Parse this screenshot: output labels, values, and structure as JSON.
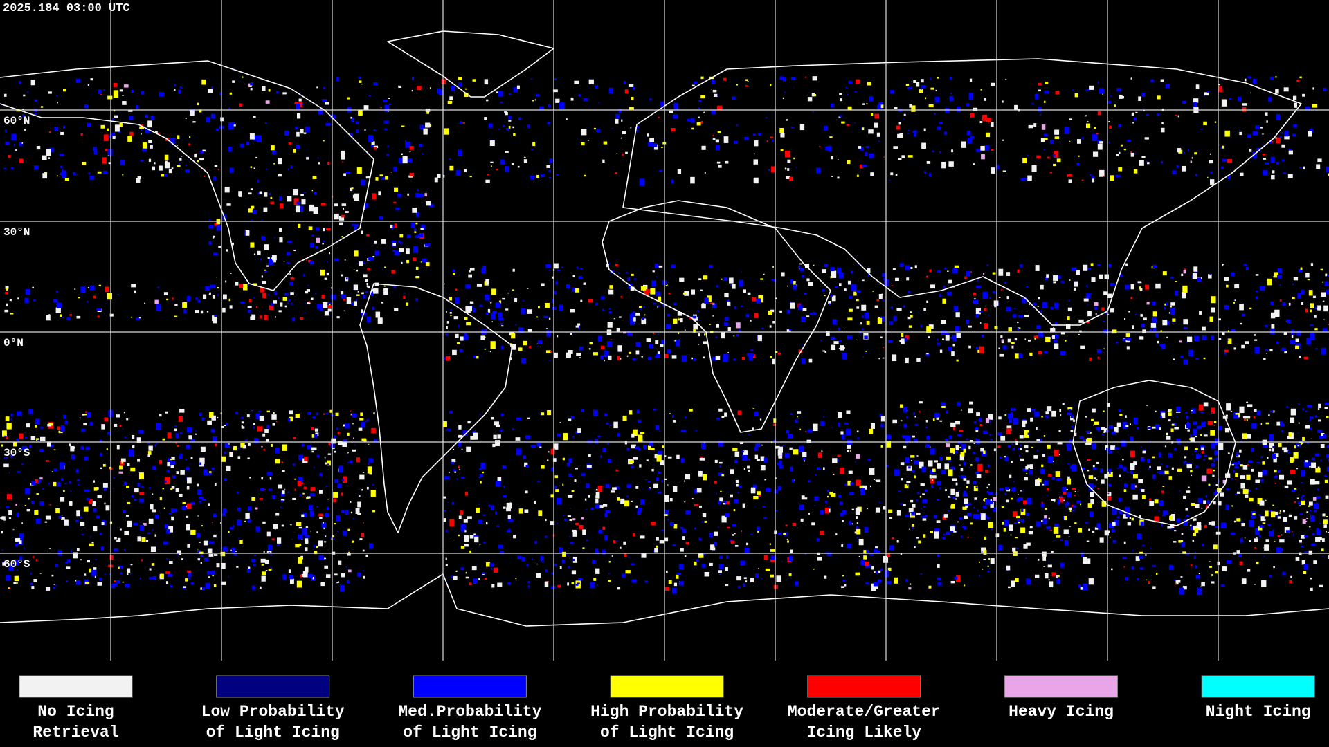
{
  "header": {
    "timestamp": "2025.184 03:00 UTC"
  },
  "map": {
    "latitude_labels": [
      "60°N",
      "30°N",
      "0°N",
      "30°S",
      "60°S"
    ]
  },
  "legend": {
    "items": [
      {
        "lines": [
          "No Icing",
          "Retrieval"
        ],
        "color": "#f2f2f2"
      },
      {
        "lines": [
          "Low Probability",
          "of Light Icing"
        ],
        "color": "#000080"
      },
      {
        "lines": [
          "Med.Probability",
          "of Light Icing"
        ],
        "color": "#0000ff"
      },
      {
        "lines": [
          "High Probability",
          "of Light Icing"
        ],
        "color": "#ffff00"
      },
      {
        "lines": [
          "Moderate/Greater",
          "Icing Likely"
        ],
        "color": "#ff0000"
      },
      {
        "lines": [
          "Heavy Icing"
        ],
        "color": "#e8a6e8"
      },
      {
        "lines": [
          "Night Icing"
        ],
        "color": "#00ffff"
      }
    ]
  }
}
